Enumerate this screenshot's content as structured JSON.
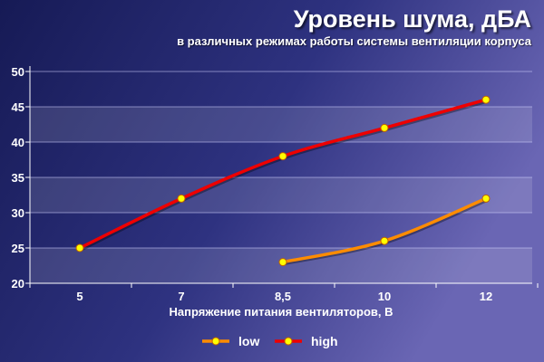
{
  "header": {
    "title": "Уровень шума, дБА",
    "subtitle": "в различных режимах работы системы вентиляции корпуса"
  },
  "chart_data": {
    "type": "line",
    "title": "Уровень шума, дБА",
    "subtitle": "в различных режимах работы системы вентиляции корпуса",
    "xlabel": "Напряжение питания вентиляторов, В",
    "ylabel": "",
    "categories": [
      "5",
      "7",
      "8,5",
      "10",
      "12"
    ],
    "yticks": [
      "20",
      "25",
      "30",
      "35",
      "40",
      "45",
      "50"
    ],
    "ylim": [
      20,
      50
    ],
    "grid": true,
    "legend_position": "bottom-center",
    "series": [
      {
        "name": "low",
        "values": [
          null,
          null,
          23,
          26,
          32
        ],
        "color": "#ff8c00"
      },
      {
        "name": "high",
        "values": [
          25,
          32,
          38,
          42,
          46
        ],
        "color": "#ee0000"
      }
    ],
    "marker_color": "#ffff00"
  }
}
